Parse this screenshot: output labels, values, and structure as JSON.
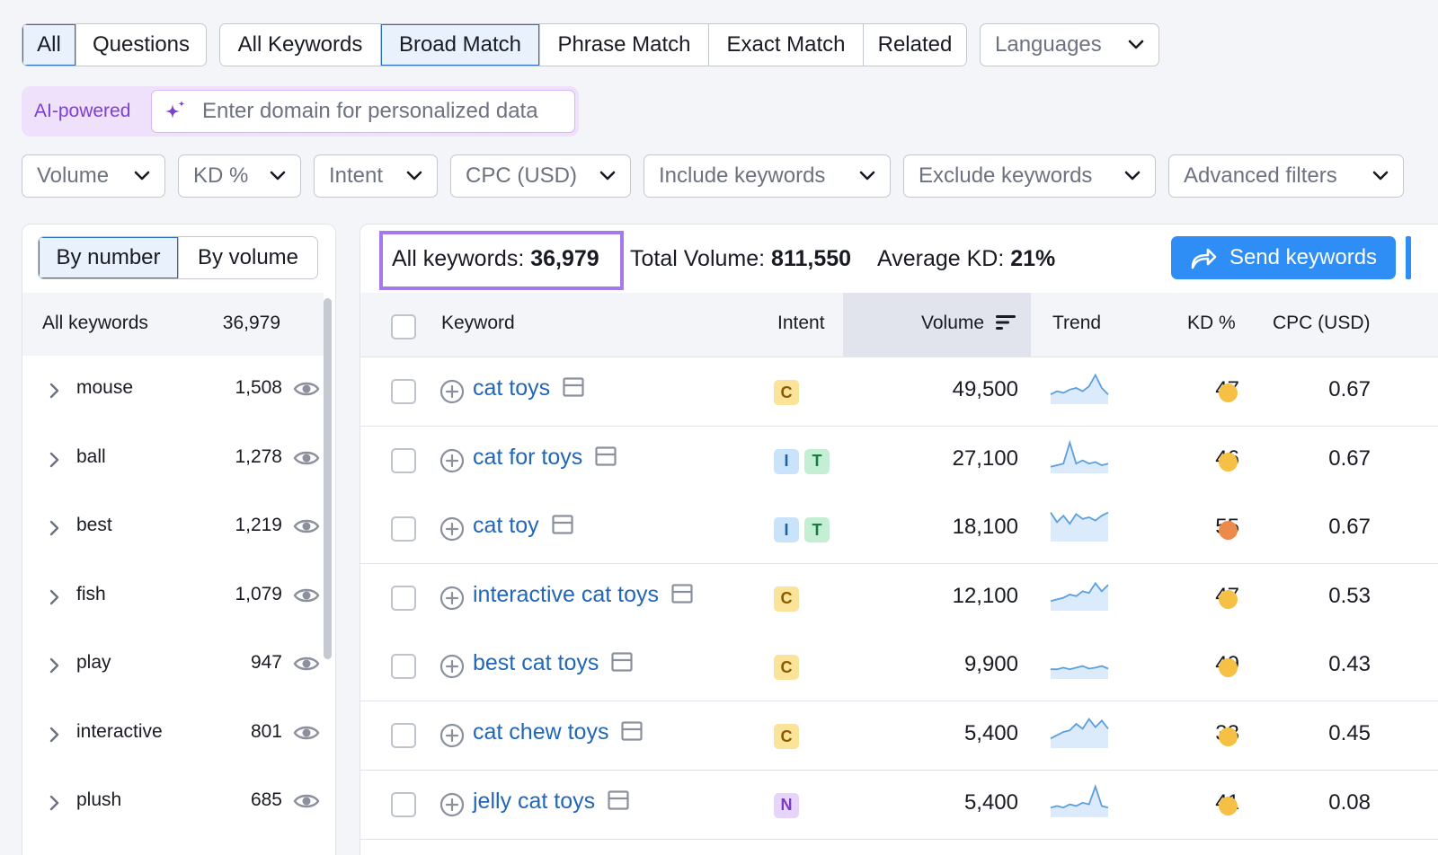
{
  "tabs_scope": [
    "All",
    "Questions"
  ],
  "tabs_match": [
    "All Keywords",
    "Broad Match",
    "Phrase Match",
    "Exact Match",
    "Related"
  ],
  "languages": {
    "label": "Languages"
  },
  "ai": {
    "badge": "AI-powered",
    "placeholder": "Enter domain for personalized data"
  },
  "filters": [
    "Volume",
    "KD %",
    "Intent",
    "CPC (USD)",
    "Include keywords",
    "Exclude keywords",
    "Advanced filters"
  ],
  "grouping": {
    "by_number": "By number",
    "by_volume": "By volume"
  },
  "groups_header": {
    "label": "All keywords",
    "count": "36,979"
  },
  "groups": [
    {
      "name": "mouse",
      "count": "1,508"
    },
    {
      "name": "ball",
      "count": "1,278"
    },
    {
      "name": "best",
      "count": "1,219"
    },
    {
      "name": "fish",
      "count": "1,079"
    },
    {
      "name": "play",
      "count": "947"
    },
    {
      "name": "interactive",
      "count": "801"
    },
    {
      "name": "plush",
      "count": "685"
    }
  ],
  "stats": {
    "all_keywords_label": "All keywords:",
    "all_keywords_value": "36,979",
    "total_volume_label": "Total Volume:",
    "total_volume_value": "811,550",
    "avg_kd_label": "Average KD:",
    "avg_kd_value": "21%"
  },
  "send_button": "Send keywords",
  "columns": {
    "keyword": "Keyword",
    "intent": "Intent",
    "volume": "Volume",
    "trend": "Trend",
    "kd": "KD %",
    "cpc": "CPC (USD)"
  },
  "intent_colors": {
    "C": {
      "bg": "#fbe49a",
      "fg": "#8a5a00"
    },
    "I": {
      "bg": "#c9e3fb",
      "fg": "#1f5fa8"
    },
    "T": {
      "bg": "#c4efd5",
      "fg": "#1b7a43"
    },
    "N": {
      "bg": "#e7d4fa",
      "fg": "#7a3ac4"
    }
  },
  "kd_colors": {
    "yellow": "#f5c043",
    "orange": "#ec8a4c"
  },
  "rows": [
    {
      "keyword": "cat toys",
      "intent": [
        "C"
      ],
      "volume": "49,500",
      "trend": [
        0.3,
        0.4,
        0.35,
        0.45,
        0.5,
        0.4,
        0.55,
        0.9,
        0.5,
        0.3
      ],
      "kd": "47",
      "kd_color": "yellow",
      "cpc": "0.67"
    },
    {
      "keyword": "cat for toys",
      "intent": [
        "I",
        "T"
      ],
      "volume": "27,100",
      "trend": [
        0.2,
        0.25,
        0.3,
        0.95,
        0.3,
        0.4,
        0.3,
        0.35,
        0.25,
        0.3
      ],
      "kd": "46",
      "kd_color": "yellow",
      "cpc": "0.67"
    },
    {
      "keyword": "cat toy",
      "intent": [
        "I",
        "T"
      ],
      "volume": "18,100",
      "trend": [
        0.9,
        0.6,
        0.8,
        0.55,
        0.85,
        0.7,
        0.75,
        0.65,
        0.8,
        0.9
      ],
      "kd": "55",
      "kd_color": "orange",
      "cpc": "0.67"
    },
    {
      "keyword": "interactive cat toys",
      "intent": [
        "C"
      ],
      "volume": "12,100",
      "trend": [
        0.3,
        0.35,
        0.4,
        0.5,
        0.45,
        0.6,
        0.55,
        0.85,
        0.6,
        0.8
      ],
      "kd": "47",
      "kd_color": "yellow",
      "cpc": "0.53"
    },
    {
      "keyword": "best cat toys",
      "intent": [
        "C"
      ],
      "volume": "9,900",
      "trend": [
        0.3,
        0.3,
        0.35,
        0.3,
        0.35,
        0.4,
        0.32,
        0.35,
        0.4,
        0.32
      ],
      "kd": "49",
      "kd_color": "yellow",
      "cpc": "0.43"
    },
    {
      "keyword": "cat chew toys",
      "intent": [
        "C"
      ],
      "volume": "5,400",
      "trend": [
        0.3,
        0.4,
        0.5,
        0.55,
        0.75,
        0.6,
        0.9,
        0.65,
        0.85,
        0.6
      ],
      "kd": "33",
      "kd_color": "yellow",
      "cpc": "0.45"
    },
    {
      "keyword": "jelly cat toys",
      "intent": [
        "N"
      ],
      "volume": "5,400",
      "trend": [
        0.3,
        0.35,
        0.3,
        0.4,
        0.35,
        0.45,
        0.4,
        0.95,
        0.35,
        0.3
      ],
      "kd": "41",
      "kd_color": "yellow",
      "cpc": "0.08"
    }
  ]
}
